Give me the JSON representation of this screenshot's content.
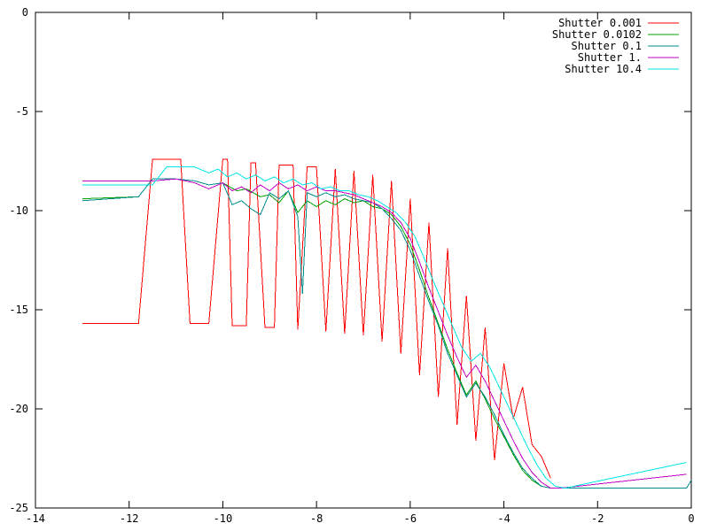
{
  "chart_data": {
    "type": "line",
    "title": "",
    "xlabel": "",
    "ylabel": "",
    "xlim": [
      -14,
      0
    ],
    "ylim": [
      -25,
      0
    ],
    "xticks": [
      -14,
      -12,
      -10,
      -8,
      -6,
      -4,
      -2,
      0
    ],
    "yticks": [
      0,
      -5,
      -10,
      -15,
      -20,
      -25
    ],
    "xtick_labels": [
      "-14",
      "-12",
      "-10",
      "-8",
      "-6",
      "-4",
      "-2",
      "0"
    ],
    "ytick_labels": [
      "0",
      "-5",
      "-10",
      "-15",
      "-20",
      "-25"
    ],
    "grid": false,
    "legend_position": "top-right",
    "series": [
      {
        "name": "Shutter 0.001",
        "color": "#ff0000",
        "x": [
          -13.0,
          -11.8,
          -11.5,
          -11.0,
          -10.9,
          -10.7,
          -10.3,
          -10.0,
          -9.9,
          -9.8,
          -9.5,
          -9.4,
          -9.3,
          -9.1,
          -8.9,
          -8.8,
          -8.5,
          -8.4,
          -8.2,
          -8.0,
          -7.8,
          -7.6,
          -7.4,
          -7.2,
          -7.0,
          -6.8,
          -6.6,
          -6.4,
          -6.2,
          -6.0,
          -5.8,
          -5.6,
          -5.4,
          -5.2,
          -5.0,
          -4.8,
          -4.6,
          -4.4,
          -4.2,
          -4.0,
          -3.8,
          -3.6,
          -3.4,
          -3.2,
          -3.0
        ],
        "y": [
          -15.7,
          -15.7,
          -7.4,
          -7.4,
          -7.4,
          -15.7,
          -15.7,
          -7.4,
          -7.4,
          -15.8,
          -15.8,
          -7.6,
          -7.6,
          -15.9,
          -15.9,
          -7.7,
          -7.7,
          -16.0,
          -7.8,
          -7.8,
          -16.1,
          -7.9,
          -16.2,
          -8.0,
          -16.3,
          -8.2,
          -16.6,
          -8.5,
          -17.2,
          -9.4,
          -18.3,
          -10.6,
          -19.4,
          -11.9,
          -20.8,
          -14.3,
          -21.6,
          -15.9,
          -22.6,
          -17.7,
          -20.5,
          -18.9,
          -21.8,
          -22.4,
          -23.5
        ]
      },
      {
        "name": "Shutter 0.0102",
        "color": "#00a000",
        "x": [
          -13.0,
          -11.8,
          -11.5,
          -11.0,
          -10.6,
          -10.3,
          -10.0,
          -9.7,
          -9.5,
          -9.2,
          -9.0,
          -8.8,
          -8.6,
          -8.4,
          -8.2,
          -8.0,
          -7.8,
          -7.6,
          -7.4,
          -7.2,
          -7.0,
          -6.8,
          -6.6,
          -6.4,
          -6.2,
          -6.0,
          -5.8,
          -5.6,
          -5.4,
          -5.2,
          -5.0,
          -4.8,
          -4.6,
          -4.4,
          -4.2,
          -4.0,
          -3.8,
          -3.6,
          -3.4,
          -3.2,
          -3.0,
          -2.8
        ],
        "y": [
          -9.4,
          -9.3,
          -8.4,
          -8.4,
          -8.5,
          -8.7,
          -8.6,
          -9.0,
          -8.9,
          -9.3,
          -9.2,
          -9.6,
          -9.0,
          -10.1,
          -9.5,
          -9.8,
          -9.5,
          -9.7,
          -9.4,
          -9.6,
          -9.5,
          -9.8,
          -9.9,
          -10.2,
          -10.8,
          -11.7,
          -13.0,
          -14.4,
          -15.7,
          -17.0,
          -18.2,
          -19.3,
          -18.6,
          -19.5,
          -20.5,
          -21.4,
          -22.3,
          -23.1,
          -23.6,
          -23.9,
          -24.0,
          -24.0
        ]
      },
      {
        "name": "Shutter 0.1",
        "color": "#008b8b",
        "x": [
          -13.0,
          -11.8,
          -11.5,
          -11.0,
          -10.6,
          -10.3,
          -10.0,
          -9.8,
          -9.6,
          -9.4,
          -9.2,
          -9.0,
          -8.8,
          -8.6,
          -8.4,
          -8.3,
          -8.2,
          -8.0,
          -7.8,
          -7.6,
          -7.4,
          -7.2,
          -7.0,
          -6.8,
          -6.6,
          -6.4,
          -6.2,
          -6.0,
          -5.8,
          -5.6,
          -5.4,
          -5.2,
          -5.0,
          -4.8,
          -4.6,
          -4.4,
          -4.2,
          -4.0,
          -3.8,
          -3.6,
          -3.4,
          -3.2,
          -3.0,
          -2.8,
          -0.1,
          0.0
        ],
        "y": [
          -9.5,
          -9.3,
          -8.4,
          -8.4,
          -8.5,
          -8.7,
          -8.6,
          -9.7,
          -9.5,
          -9.9,
          -10.2,
          -9.1,
          -9.4,
          -9.0,
          -10.3,
          -14.2,
          -9.1,
          -9.3,
          -9.1,
          -9.3,
          -9.2,
          -9.4,
          -9.5,
          -9.6,
          -9.9,
          -10.4,
          -11.0,
          -12.0,
          -13.3,
          -14.6,
          -15.8,
          -17.2,
          -18.3,
          -19.4,
          -18.7,
          -19.4,
          -20.3,
          -21.3,
          -22.2,
          -23.0,
          -23.5,
          -23.9,
          -24.0,
          -24.0,
          -24.0,
          -23.6
        ]
      },
      {
        "name": "Shutter 1.",
        "color": "#c000c0",
        "x": [
          -13.0,
          -11.5,
          -11.0,
          -10.6,
          -10.3,
          -10.0,
          -9.8,
          -9.6,
          -9.4,
          -9.2,
          -9.0,
          -8.8,
          -8.6,
          -8.4,
          -8.2,
          -8.0,
          -7.8,
          -7.6,
          -7.4,
          -7.2,
          -7.0,
          -6.8,
          -6.6,
          -6.4,
          -6.2,
          -6.0,
          -5.8,
          -5.6,
          -5.4,
          -5.2,
          -5.0,
          -4.8,
          -4.6,
          -4.4,
          -4.2,
          -4.0,
          -3.8,
          -3.6,
          -3.4,
          -3.2,
          -3.0,
          -2.8,
          -0.1
        ],
        "y": [
          -8.5,
          -8.5,
          -8.4,
          -8.6,
          -8.9,
          -8.6,
          -9.0,
          -8.8,
          -9.1,
          -8.7,
          -9.0,
          -8.6,
          -8.9,
          -8.7,
          -9.0,
          -8.8,
          -9.0,
          -9.0,
          -9.1,
          -9.2,
          -9.4,
          -9.6,
          -9.8,
          -10.1,
          -10.6,
          -11.4,
          -12.6,
          -13.9,
          -15.1,
          -16.3,
          -17.4,
          -18.4,
          -17.8,
          -18.6,
          -19.6,
          -20.6,
          -21.6,
          -22.5,
          -23.2,
          -23.7,
          -24.0,
          -24.0,
          -23.3
        ]
      },
      {
        "name": "Shutter 10.4",
        "color": "#00e5e5",
        "x": [
          -13.0,
          -11.5,
          -11.2,
          -11.0,
          -10.6,
          -10.3,
          -10.1,
          -9.9,
          -9.7,
          -9.5,
          -9.3,
          -9.1,
          -8.9,
          -8.7,
          -8.5,
          -8.3,
          -8.1,
          -7.9,
          -7.7,
          -7.5,
          -7.3,
          -7.1,
          -6.9,
          -6.7,
          -6.5,
          -6.3,
          -6.1,
          -5.9,
          -5.7,
          -5.5,
          -5.3,
          -5.1,
          -4.9,
          -4.7,
          -4.5,
          -4.3,
          -4.1,
          -3.9,
          -3.7,
          -3.5,
          -3.3,
          -3.1,
          -2.9,
          -2.7,
          -0.1
        ],
        "y": [
          -8.7,
          -8.7,
          -7.8,
          -7.8,
          -7.8,
          -8.1,
          -7.9,
          -8.3,
          -8.1,
          -8.4,
          -8.2,
          -8.5,
          -8.3,
          -8.6,
          -8.4,
          -8.7,
          -8.6,
          -8.9,
          -8.8,
          -9.0,
          -9.0,
          -9.2,
          -9.3,
          -9.5,
          -9.8,
          -10.1,
          -10.6,
          -11.3,
          -12.4,
          -13.6,
          -14.7,
          -15.8,
          -16.9,
          -17.6,
          -17.2,
          -17.9,
          -18.9,
          -19.9,
          -20.9,
          -21.9,
          -22.8,
          -23.5,
          -23.9,
          -24.0,
          -22.7
        ]
      }
    ]
  }
}
